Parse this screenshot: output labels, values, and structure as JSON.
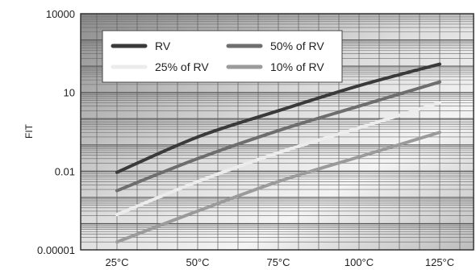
{
  "chart_data": {
    "type": "line",
    "title": "",
    "xlabel": "",
    "ylabel": "FIT",
    "categories": [
      "25°C",
      "50°C",
      "75°C",
      "100°C",
      "125°C"
    ],
    "yscale": "log",
    "ylim": [
      1e-05,
      10000
    ],
    "yticks": [
      "10000",
      "10",
      "0.01",
      "0.00001"
    ],
    "grid": true,
    "legend_position": "top-left",
    "series": [
      {
        "name": "RV",
        "color": "#3a3a3a",
        "values": [
          0.009,
          0.2,
          2.0,
          18,
          120
        ]
      },
      {
        "name": "50% of RV",
        "color": "#6e6e6e",
        "values": [
          0.0018,
          0.03,
          0.35,
          3.0,
          25
        ]
      },
      {
        "name": "25% of RV",
        "color": "#ececec",
        "values": [
          0.00022,
          0.004,
          0.05,
          0.45,
          4.0
        ]
      },
      {
        "name": "10% of RV",
        "color": "#9b9b9b",
        "values": [
          2e-05,
          0.0003,
          0.004,
          0.035,
          0.3
        ]
      }
    ]
  }
}
